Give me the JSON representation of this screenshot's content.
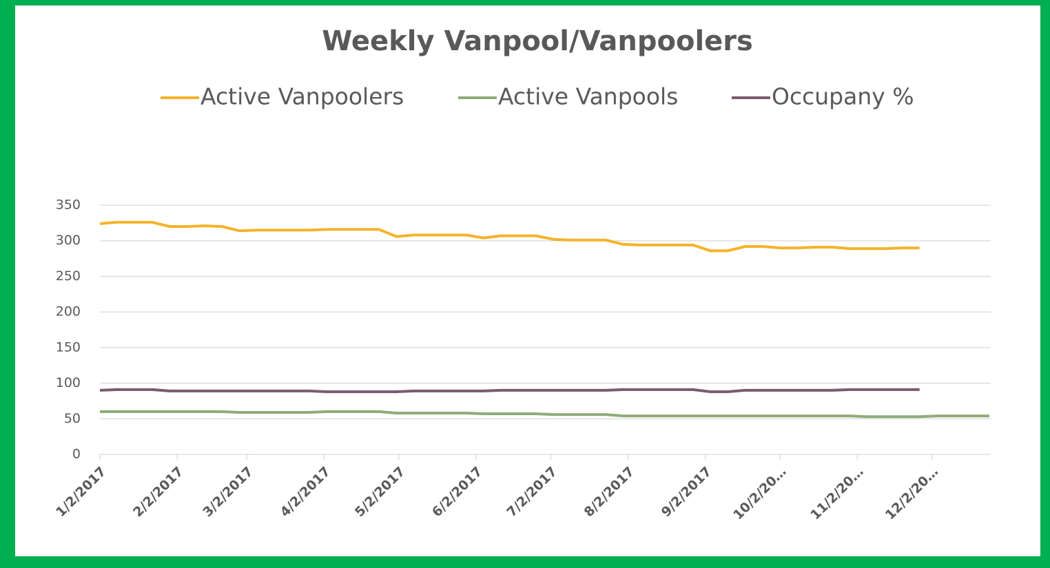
{
  "chart_data": {
    "type": "line",
    "title": "Weekly Vanpool/Vanpoolers",
    "x": [
      "1/2/2017",
      "1/9/2017",
      "1/16/2017",
      "1/23/2017",
      "1/30/2017",
      "2/6/2017",
      "2/13/2017",
      "2/20/2017",
      "2/27/2017",
      "3/6/2017",
      "3/13/2017",
      "3/20/2017",
      "3/27/2017",
      "4/3/2017",
      "4/10/2017",
      "4/17/2017",
      "4/24/2017",
      "5/1/2017",
      "5/8/2017",
      "5/15/2017",
      "5/22/2017",
      "5/29/2017",
      "6/5/2017",
      "6/12/2017",
      "6/19/2017",
      "6/26/2017",
      "7/3/2017",
      "7/10/2017",
      "7/17/2017",
      "7/24/2017",
      "7/31/2017",
      "8/7/2017",
      "8/14/2017",
      "8/21/2017",
      "8/28/2017",
      "9/4/2017",
      "9/11/2017",
      "9/18/2017",
      "9/25/2017",
      "10/2/2017",
      "10/9/2017",
      "10/16/2017",
      "10/23/2017",
      "10/30/2017",
      "11/6/2017",
      "11/13/2017",
      "11/20/2017",
      "11/27/2017",
      "12/4/2017",
      "12/11/2017",
      "12/18/2017",
      "12/25/2017"
    ],
    "series": [
      {
        "name": "Active Vanpoolers",
        "color": "#f4b32a",
        "values": [
          324,
          326,
          326,
          326,
          320,
          320,
          321,
          320,
          314,
          315,
          315,
          315,
          315,
          316,
          316,
          316,
          316,
          306,
          308,
          308,
          308,
          308,
          304,
          307,
          307,
          307,
          302,
          301,
          301,
          301,
          295,
          294,
          294,
          294,
          294,
          286,
          286,
          292,
          292,
          290,
          290,
          291,
          291,
          289,
          289,
          289,
          290,
          290,
          null,
          null,
          null,
          null
        ]
      },
      {
        "name": "Active Vanpools",
        "color": "#8fac78",
        "values": [
          60,
          60,
          60,
          60,
          60,
          60,
          60,
          60,
          59,
          59,
          59,
          59,
          59,
          60,
          60,
          60,
          60,
          58,
          58,
          58,
          58,
          58,
          57,
          57,
          57,
          57,
          56,
          56,
          56,
          56,
          54,
          54,
          54,
          54,
          54,
          54,
          54,
          54,
          54,
          54,
          54,
          54,
          54,
          54,
          53,
          53,
          53,
          53,
          54,
          54,
          54,
          54
        ]
      },
      {
        "name": "Occupany %",
        "color": "#7b5b70",
        "values": [
          90,
          91,
          91,
          91,
          89,
          89,
          89,
          89,
          89,
          89,
          89,
          89,
          89,
          88,
          88,
          88,
          88,
          88,
          89,
          89,
          89,
          89,
          89,
          90,
          90,
          90,
          90,
          90,
          90,
          90,
          91,
          91,
          91,
          91,
          91,
          88,
          88,
          90,
          90,
          90,
          90,
          90,
          90,
          91,
          91,
          91,
          91,
          91,
          null,
          null,
          null,
          null
        ]
      }
    ],
    "xlim": [
      "1/2/2017",
      "12/25/2017"
    ],
    "xticks": [
      "1/2/2017",
      "2/2/2017",
      "3/2/2017",
      "4/2/2017",
      "5/2/2017",
      "6/2/2017",
      "7/2/2017",
      "8/2/2017",
      "9/2/2017",
      {
        "value": "10/2/2017",
        "label": "10/2/20…"
      },
      {
        "value": "11/2/2017",
        "label": "11/2/20…"
      },
      {
        "value": "12/2/2017",
        "label": "12/2/20…"
      }
    ],
    "ylim": [
      0,
      350
    ],
    "yticks": [
      0,
      50,
      100,
      150,
      200,
      250,
      300,
      350
    ],
    "grid": true,
    "legend": "top"
  }
}
